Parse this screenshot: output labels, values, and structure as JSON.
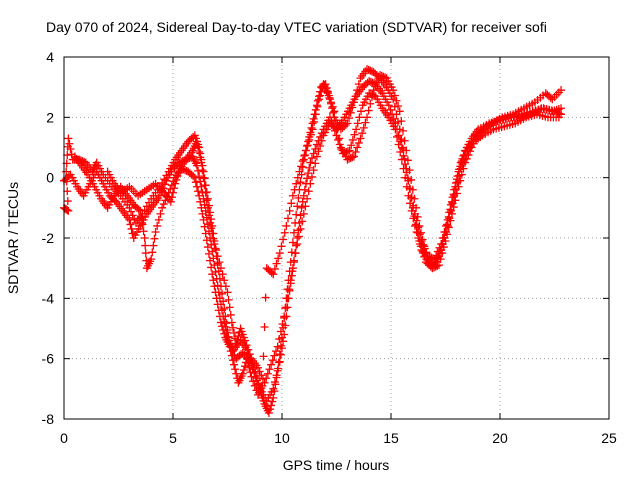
{
  "chart_data": {
    "type": "scatter",
    "title": "Day 070 of 2024, Sidereal Day-to-day VTEC variation (SDTVAR) for receiver sofi",
    "xlabel": "GPS time / hours",
    "ylabel": "SDTVAR / TECUs",
    "xlim": [
      0,
      25
    ],
    "ylim": [
      -8,
      4
    ],
    "xticks": [
      "0",
      "5",
      "10",
      "15",
      "20",
      "25"
    ],
    "yticks": [
      "-8",
      "-6",
      "-4",
      "-2",
      "0",
      "2",
      "4"
    ],
    "grid": true,
    "marker": "+",
    "color": "#ff0000",
    "series": [
      {
        "points": [
          [
            0.0,
            -1.0
          ],
          [
            0.2,
            -1.1
          ],
          [
            0.1,
            0.2
          ],
          [
            0.2,
            1.3
          ],
          [
            0.4,
            0.6
          ],
          [
            0.7,
            0.6
          ],
          [
            1.0,
            0.5
          ],
          [
            1.3,
            0.2
          ],
          [
            1.5,
            0.5
          ],
          [
            1.8,
            0.1
          ],
          [
            2.2,
            -0.3
          ],
          [
            2.6,
            -0.6
          ],
          [
            3.0,
            -1.0
          ],
          [
            3.3,
            -1.5
          ],
          [
            3.6,
            -1.2
          ],
          [
            4.0,
            -0.7
          ],
          [
            4.4,
            -0.3
          ],
          [
            4.8,
            0.2
          ],
          [
            5.1,
            0.6
          ],
          [
            5.4,
            0.9
          ],
          [
            5.7,
            1.2
          ],
          [
            6.0,
            1.4
          ],
          [
            6.2,
            1.0
          ],
          [
            6.4,
            0.2
          ],
          [
            6.6,
            -0.7
          ],
          [
            6.8,
            -1.6
          ],
          [
            7.0,
            -2.6
          ],
          [
            7.2,
            -3.6
          ],
          [
            7.4,
            -4.6
          ],
          [
            7.6,
            -5.5
          ],
          [
            7.9,
            -6.0
          ],
          [
            8.2,
            -5.8
          ],
          [
            8.5,
            -6.1
          ],
          [
            8.8,
            -6.6
          ],
          [
            9.0,
            -7.1
          ],
          [
            9.2,
            -7.5
          ],
          [
            9.4,
            -7.8
          ],
          [
            9.6,
            -7.3
          ],
          [
            9.8,
            -6.4
          ],
          [
            10.0,
            -5.3
          ],
          [
            10.2,
            -4.0
          ],
          [
            10.4,
            -2.8
          ],
          [
            10.6,
            -1.5
          ],
          [
            10.8,
            -0.4
          ],
          [
            11.0,
            0.6
          ],
          [
            11.2,
            1.2
          ],
          [
            11.4,
            1.8
          ],
          [
            11.6,
            2.4
          ],
          [
            11.8,
            3.0
          ],
          [
            12.0,
            3.1
          ],
          [
            12.2,
            2.6
          ],
          [
            12.4,
            2.0
          ],
          [
            12.7,
            1.6
          ],
          [
            13.0,
            1.8
          ],
          [
            13.3,
            2.5
          ],
          [
            13.6,
            3.3
          ],
          [
            13.9,
            3.6
          ],
          [
            14.2,
            3.5
          ],
          [
            14.5,
            3.3
          ],
          [
            14.8,
            3.0
          ],
          [
            15.1,
            2.6
          ],
          [
            15.4,
            1.6
          ],
          [
            15.7,
            0.3
          ],
          [
            16.0,
            -1.0
          ],
          [
            16.3,
            -2.1
          ],
          [
            16.6,
            -2.8
          ],
          [
            16.9,
            -3.0
          ],
          [
            17.2,
            -2.6
          ],
          [
            17.5,
            -1.8
          ],
          [
            17.8,
            -0.8
          ],
          [
            18.1,
            0.2
          ],
          [
            18.4,
            0.9
          ],
          [
            18.7,
            1.3
          ],
          [
            19.0,
            1.6
          ],
          [
            19.5,
            1.8
          ],
          [
            20.0,
            1.9
          ],
          [
            20.5,
            2.0
          ],
          [
            21.0,
            2.1
          ],
          [
            21.5,
            2.2
          ],
          [
            22.0,
            2.3
          ],
          [
            22.5,
            2.2
          ],
          [
            22.8,
            2.1
          ]
        ]
      },
      {
        "points": [
          [
            0.0,
            -0.1
          ],
          [
            0.3,
            0.1
          ],
          [
            0.6,
            -0.3
          ],
          [
            0.9,
            -0.6
          ],
          [
            1.2,
            -0.2
          ],
          [
            1.5,
            0.2
          ],
          [
            1.8,
            -0.2
          ],
          [
            2.1,
            -0.6
          ],
          [
            2.4,
            -0.8
          ],
          [
            2.7,
            -1.1
          ],
          [
            3.0,
            -1.4
          ],
          [
            3.2,
            -2.0
          ],
          [
            3.5,
            -1.6
          ],
          [
            3.8,
            -1.2
          ],
          [
            4.1,
            -0.9
          ],
          [
            4.4,
            -0.6
          ],
          [
            4.7,
            -0.1
          ],
          [
            5.0,
            0.3
          ],
          [
            5.3,
            0.5
          ],
          [
            5.6,
            0.6
          ],
          [
            5.9,
            0.7
          ],
          [
            6.1,
            0.4
          ],
          [
            6.3,
            -0.3
          ],
          [
            6.5,
            -1.1
          ],
          [
            6.7,
            -2.0
          ],
          [
            6.9,
            -2.9
          ],
          [
            7.1,
            -3.8
          ],
          [
            7.3,
            -4.6
          ],
          [
            7.5,
            -5.3
          ],
          [
            7.8,
            -5.7
          ],
          [
            8.1,
            -5.4
          ],
          [
            8.4,
            -5.7
          ],
          [
            8.7,
            -6.3
          ],
          [
            9.0,
            -7.0
          ],
          [
            9.3,
            -7.4
          ],
          [
            9.6,
            -7.0
          ],
          [
            9.9,
            -6.1
          ],
          [
            10.1,
            -5.2
          ],
          [
            10.3,
            -4.0
          ],
          [
            10.5,
            -3.0
          ],
          [
            10.7,
            -2.0
          ],
          [
            10.9,
            -1.0
          ],
          [
            11.1,
            -0.2
          ],
          [
            11.3,
            0.5
          ],
          [
            11.6,
            1.1
          ],
          [
            11.9,
            1.6
          ],
          [
            12.2,
            2.0
          ],
          [
            12.5,
            1.4
          ],
          [
            12.8,
            0.8
          ],
          [
            13.1,
            0.9
          ],
          [
            13.4,
            1.6
          ],
          [
            13.7,
            2.4
          ],
          [
            14.0,
            2.8
          ],
          [
            14.3,
            2.7
          ],
          [
            14.6,
            2.3
          ],
          [
            14.9,
            2.0
          ],
          [
            15.2,
            1.6
          ],
          [
            15.5,
            0.6
          ],
          [
            15.8,
            -0.6
          ],
          [
            16.1,
            -1.6
          ],
          [
            16.4,
            -2.4
          ],
          [
            16.7,
            -2.8
          ],
          [
            17.0,
            -2.9
          ],
          [
            17.3,
            -2.4
          ],
          [
            17.6,
            -1.6
          ],
          [
            17.9,
            -0.6
          ],
          [
            18.2,
            0.3
          ],
          [
            18.5,
            0.9
          ],
          [
            18.8,
            1.2
          ],
          [
            19.2,
            1.4
          ],
          [
            19.7,
            1.6
          ],
          [
            20.2,
            1.7
          ],
          [
            20.7,
            1.8
          ],
          [
            21.2,
            2.0
          ],
          [
            21.7,
            2.1
          ],
          [
            22.2,
            2.0
          ],
          [
            22.7,
            2.0
          ]
        ]
      },
      {
        "points": [
          [
            0.5,
            0.7
          ],
          [
            0.8,
            0.4
          ],
          [
            1.1,
            0.1
          ],
          [
            1.4,
            -0.3
          ],
          [
            1.7,
            -0.7
          ],
          [
            2.0,
            -1.0
          ],
          [
            2.3,
            -0.6
          ],
          [
            2.6,
            -0.3
          ],
          [
            2.9,
            -0.6
          ],
          [
            3.2,
            -0.9
          ],
          [
            3.5,
            -1.1
          ],
          [
            3.7,
            -2.0
          ],
          [
            3.8,
            -3.0
          ],
          [
            4.0,
            -2.7
          ],
          [
            4.2,
            -1.8
          ],
          [
            4.5,
            -1.0
          ],
          [
            4.8,
            -0.5
          ],
          [
            5.1,
            0.0
          ],
          [
            5.4,
            0.3
          ],
          [
            5.7,
            0.2
          ],
          [
            6.0,
            0.0
          ],
          [
            6.2,
            -0.6
          ],
          [
            6.4,
            -1.4
          ],
          [
            6.6,
            -2.3
          ],
          [
            6.8,
            -3.2
          ],
          [
            7.0,
            -4.0
          ],
          [
            7.2,
            -4.8
          ],
          [
            7.4,
            -5.3
          ],
          [
            7.6,
            -5.6
          ],
          [
            7.8,
            -6.2
          ],
          [
            8.0,
            -6.8
          ],
          [
            8.2,
            -6.5
          ],
          [
            8.4,
            -6.0
          ],
          [
            8.6,
            -6.6
          ],
          [
            8.9,
            -7.2
          ],
          [
            9.1,
            -6.9
          ],
          [
            9.3,
            -3.0
          ],
          [
            9.6,
            -3.2
          ],
          [
            9.9,
            -2.5
          ],
          [
            10.2,
            -1.6
          ],
          [
            10.5,
            -0.6
          ],
          [
            10.8,
            0.2
          ],
          [
            11.1,
            0.9
          ],
          [
            11.4,
            1.6
          ],
          [
            11.7,
            2.6
          ],
          [
            11.9,
            3.1
          ],
          [
            12.1,
            2.8
          ],
          [
            12.4,
            2.2
          ],
          [
            12.7,
            1.0
          ],
          [
            13.0,
            0.6
          ],
          [
            13.3,
            0.7
          ],
          [
            13.6,
            1.3
          ],
          [
            13.9,
            2.0
          ],
          [
            14.2,
            2.9
          ],
          [
            14.5,
            3.4
          ],
          [
            14.8,
            3.3
          ],
          [
            15.1,
            2.9
          ],
          [
            15.4,
            2.2
          ],
          [
            15.7,
            0.9
          ],
          [
            16.0,
            -0.4
          ],
          [
            16.3,
            -1.6
          ],
          [
            16.6,
            -2.5
          ],
          [
            16.9,
            -3.0
          ],
          [
            17.2,
            -2.9
          ],
          [
            17.5,
            -2.1
          ],
          [
            17.8,
            -1.2
          ],
          [
            18.1,
            -0.3
          ],
          [
            18.4,
            0.5
          ],
          [
            18.7,
            1.0
          ],
          [
            19.1,
            1.5
          ],
          [
            19.6,
            1.8
          ],
          [
            20.1,
            2.0
          ],
          [
            20.6,
            2.1
          ],
          [
            21.1,
            2.3
          ],
          [
            21.6,
            2.5
          ],
          [
            22.1,
            2.8
          ],
          [
            22.4,
            2.6
          ],
          [
            22.8,
            2.9
          ]
        ]
      },
      {
        "points": [
          [
            2.0,
            0.2
          ],
          [
            2.3,
            -0.2
          ],
          [
            2.6,
            -0.5
          ],
          [
            3.0,
            -0.3
          ],
          [
            3.4,
            -0.6
          ],
          [
            3.8,
            -0.4
          ],
          [
            4.2,
            -0.2
          ],
          [
            4.6,
            -0.5
          ],
          [
            4.9,
            -0.8
          ],
          [
            5.1,
            -0.2
          ],
          [
            5.3,
            0.3
          ],
          [
            5.6,
            0.6
          ],
          [
            5.9,
            0.9
          ],
          [
            6.1,
            1.2
          ],
          [
            6.3,
            0.5
          ],
          [
            6.5,
            -0.5
          ],
          [
            6.7,
            -1.5
          ],
          [
            6.9,
            -2.2
          ],
          [
            7.2,
            -3.0
          ],
          [
            7.5,
            -3.8
          ],
          [
            7.7,
            -4.8
          ],
          [
            7.9,
            -5.5
          ],
          [
            8.1,
            -5.0
          ],
          [
            8.3,
            -5.4
          ],
          [
            8.6,
            -6.0
          ],
          [
            8.9,
            -6.3
          ],
          [
            9.2,
            -6.8
          ],
          [
            9.5,
            -6.2
          ],
          [
            9.8,
            -5.6
          ],
          [
            10.1,
            -4.6
          ],
          [
            10.4,
            -3.4
          ],
          [
            10.7,
            -2.2
          ],
          [
            11.0,
            -1.2
          ],
          [
            11.3,
            -0.2
          ],
          [
            11.6,
            0.7
          ],
          [
            11.9,
            1.4
          ],
          [
            12.2,
            1.8
          ],
          [
            12.5,
            1.6
          ],
          [
            12.8,
            1.9
          ],
          [
            13.1,
            2.3
          ],
          [
            13.4,
            2.7
          ],
          [
            13.7,
            3.0
          ],
          [
            14.0,
            3.2
          ],
          [
            14.3,
            3.1
          ],
          [
            14.6,
            2.8
          ],
          [
            14.9,
            2.4
          ],
          [
            15.2,
            1.8
          ],
          [
            15.5,
            1.0
          ],
          [
            15.8,
            -0.1
          ],
          [
            16.1,
            -1.2
          ],
          [
            16.4,
            -2.1
          ],
          [
            16.7,
            -2.6
          ],
          [
            17.0,
            -2.7
          ],
          [
            17.3,
            -2.2
          ],
          [
            17.6,
            -1.4
          ],
          [
            17.9,
            -0.4
          ],
          [
            18.2,
            0.5
          ],
          [
            18.5,
            1.0
          ],
          [
            18.9,
            1.4
          ],
          [
            19.4,
            1.7
          ],
          [
            19.9,
            1.9
          ],
          [
            20.4,
            2.0
          ],
          [
            20.9,
            2.0
          ],
          [
            21.4,
            2.1
          ],
          [
            21.9,
            2.3
          ],
          [
            22.4,
            2.2
          ],
          [
            22.8,
            2.3
          ]
        ]
      }
    ]
  }
}
